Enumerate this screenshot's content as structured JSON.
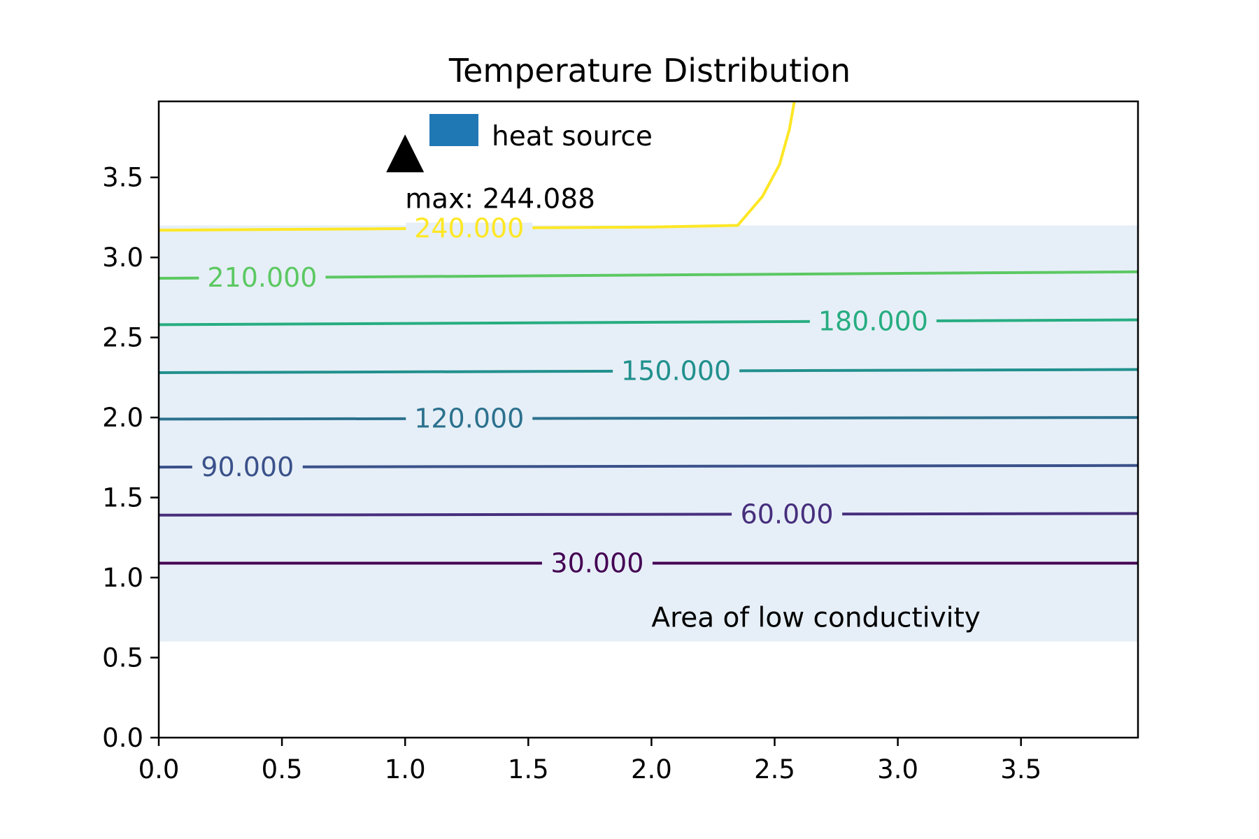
{
  "chart_data": {
    "type": "contour",
    "title": "Temperature Distribution",
    "xlabel": "",
    "ylabel": "",
    "xlim": [
      0,
      3.975
    ],
    "ylim": [
      0,
      3.975
    ],
    "x_ticks": [
      0.0,
      0.5,
      1.0,
      1.5,
      2.0,
      2.5,
      3.0,
      3.5
    ],
    "y_ticks": [
      0.0,
      0.5,
      1.0,
      1.5,
      2.0,
      2.5,
      3.0,
      3.5
    ],
    "x_tick_labels": [
      "0.0",
      "0.5",
      "1.0",
      "1.5",
      "2.0",
      "2.5",
      "3.0",
      "3.5"
    ],
    "y_tick_labels": [
      "0.0",
      "0.5",
      "1.0",
      "1.5",
      "2.0",
      "2.5",
      "3.0",
      "3.5"
    ],
    "grid": false,
    "shaded_region": {
      "y_range": [
        0.6,
        3.2
      ],
      "label": "Area of low conductivity",
      "label_position": [
        2.0,
        0.75
      ],
      "color": "#e6eff7"
    },
    "contours": [
      {
        "level": 30,
        "label": "30.000",
        "color": "#440154",
        "label_x": 1.78,
        "points": [
          [
            0,
            1.09
          ],
          [
            3.975,
            1.09
          ]
        ]
      },
      {
        "level": 60,
        "label": "60.000",
        "color": "#472f7d",
        "label_x": 2.55,
        "points": [
          [
            0,
            1.39
          ],
          [
            3.975,
            1.4
          ]
        ]
      },
      {
        "level": 90,
        "label": "90.000",
        "color": "#3b518b",
        "label_x": 0.36,
        "points": [
          [
            0,
            1.69
          ],
          [
            3.975,
            1.7
          ]
        ]
      },
      {
        "level": 120,
        "label": "120.000",
        "color": "#2c718e",
        "label_x": 1.26,
        "points": [
          [
            0,
            1.99
          ],
          [
            3.975,
            2.0
          ]
        ]
      },
      {
        "level": 150,
        "label": "150.000",
        "color": "#21908d",
        "label_x": 2.1,
        "points": [
          [
            0,
            2.28
          ],
          [
            3.975,
            2.3
          ]
        ]
      },
      {
        "level": 180,
        "label": "180.000",
        "color": "#27ad81",
        "label_x": 2.9,
        "points": [
          [
            0,
            2.58
          ],
          [
            3.975,
            2.61
          ]
        ]
      },
      {
        "level": 210,
        "label": "210.000",
        "color": "#5cc863",
        "label_x": 0.42,
        "points": [
          [
            0,
            2.87
          ],
          [
            3.975,
            2.91
          ]
        ]
      },
      {
        "level": 240,
        "label": "240.000",
        "color": "#fde725",
        "label_x": 1.26,
        "points": [
          [
            0,
            3.17
          ],
          [
            1.0,
            3.18
          ],
          [
            2.0,
            3.19
          ],
          [
            2.35,
            3.2
          ],
          [
            2.45,
            3.38
          ],
          [
            2.52,
            3.58
          ],
          [
            2.56,
            3.8
          ],
          [
            2.58,
            3.975
          ]
        ]
      }
    ],
    "markers": [
      {
        "x": 1.0,
        "y": 3.65,
        "shape": "triangle-up",
        "color": "#000000",
        "label": "max: 244.088"
      }
    ],
    "legend": {
      "placement": "top-center",
      "entries": [
        {
          "label": "heat source",
          "color": "#1f77b4"
        }
      ]
    }
  }
}
